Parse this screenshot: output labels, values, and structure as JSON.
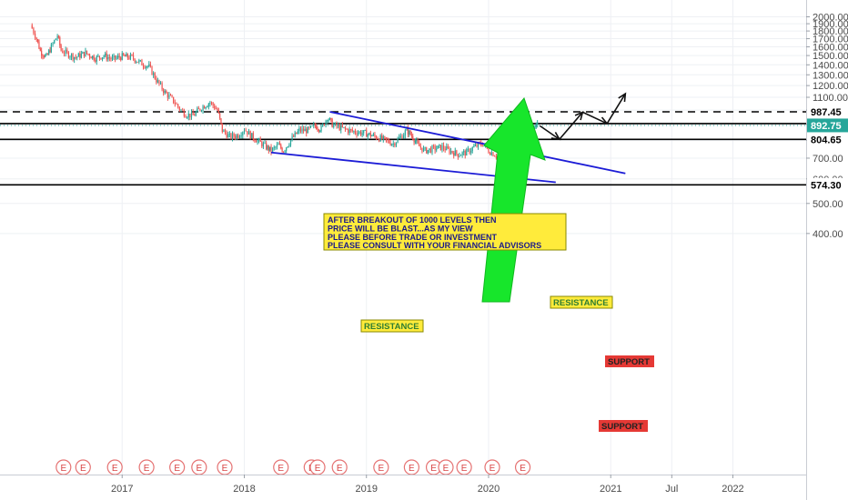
{
  "chart_data": {
    "type": "candlestick",
    "title": "",
    "xlabel": "",
    "ylabel": "",
    "ylim": [
      370,
      2090
    ],
    "yscale": "log",
    "x_ticks": [
      "2017",
      "2018",
      "2019",
      "2020",
      "2021",
      "Jul",
      "2022"
    ],
    "y_ticks": [
      2000,
      1900,
      1800,
      1700,
      1600,
      1500,
      1400,
      1300,
      1200,
      1100,
      1000,
      900,
      800,
      700,
      600,
      500,
      400
    ],
    "y_tick_labels": [
      "2000.00",
      "1900.00",
      "1800.00",
      "1700.00",
      "1600.00",
      "1500.00",
      "1400.00",
      "1300.00",
      "1200.00",
      "1100.00",
      "1000.00",
      "900.00",
      "800.00",
      "700.00",
      "600.00",
      "500.00",
      "400.00"
    ],
    "grid": true,
    "colors": {
      "up": "#26a69a",
      "down": "#ef5350",
      "trend": "#1c1cd6",
      "arrow": "#17e62b",
      "current": "#26a69a",
      "level": "#000000",
      "annotation_box": "#ffeb3b",
      "support_box": "#e53935"
    },
    "price_path": [
      [
        2016.25,
        1880
      ],
      [
        2016.3,
        1700
      ],
      [
        2016.33,
        1550
      ],
      [
        2016.38,
        1480
      ],
      [
        2016.42,
        1600
      ],
      [
        2016.47,
        1740
      ],
      [
        2016.5,
        1560
      ],
      [
        2016.55,
        1520
      ],
      [
        2016.62,
        1480
      ],
      [
        2016.7,
        1530
      ],
      [
        2016.78,
        1470
      ],
      [
        2016.85,
        1500
      ],
      [
        2016.92,
        1460
      ],
      [
        2017.0,
        1490
      ],
      [
        2017.08,
        1480
      ],
      [
        2017.15,
        1420
      ],
      [
        2017.22,
        1380
      ],
      [
        2017.28,
        1250
      ],
      [
        2017.35,
        1140
      ],
      [
        2017.42,
        1070
      ],
      [
        2017.47,
        1010
      ],
      [
        2017.52,
        970
      ],
      [
        2017.58,
        960
      ],
      [
        2017.65,
        1020
      ],
      [
        2017.72,
        1060
      ],
      [
        2017.78,
        1000
      ],
      [
        2017.82,
        860
      ],
      [
        2017.88,
        820
      ],
      [
        2017.95,
        830
      ],
      [
        2018.0,
        870
      ],
      [
        2018.05,
        830
      ],
      [
        2018.12,
        790
      ],
      [
        2018.18,
        760
      ],
      [
        2018.22,
        740
      ],
      [
        2018.28,
        770
      ],
      [
        2018.32,
        740
      ],
      [
        2018.38,
        800
      ],
      [
        2018.45,
        860
      ],
      [
        2018.52,
        860
      ],
      [
        2018.58,
        890
      ],
      [
        2018.63,
        870
      ],
      [
        2018.68,
        950
      ],
      [
        2018.72,
        900
      ],
      [
        2018.78,
        880
      ],
      [
        2018.85,
        860
      ],
      [
        2018.92,
        850
      ],
      [
        2019.0,
        840
      ],
      [
        2019.08,
        820
      ],
      [
        2019.15,
        800
      ],
      [
        2019.22,
        780
      ],
      [
        2019.28,
        820
      ],
      [
        2019.33,
        860
      ],
      [
        2019.38,
        820
      ],
      [
        2019.42,
        770
      ],
      [
        2019.48,
        740
      ],
      [
        2019.55,
        750
      ],
      [
        2019.62,
        760
      ],
      [
        2019.68,
        740
      ],
      [
        2019.75,
        720
      ],
      [
        2019.82,
        730
      ],
      [
        2019.88,
        760
      ],
      [
        2019.95,
        780
      ],
      [
        2020.0,
        740
      ],
      [
        2020.05,
        720
      ],
      [
        2020.1,
        690
      ],
      [
        2020.15,
        640
      ],
      [
        2020.18,
        580
      ],
      [
        2020.21,
        520
      ],
      [
        2020.23,
        530
      ],
      [
        2020.27,
        760
      ],
      [
        2020.32,
        830
      ],
      [
        2020.37,
        860
      ],
      [
        2020.4,
        892.75
      ]
    ],
    "series": [
      {
        "name": "",
        "type": "horizontal",
        "value": 987.45,
        "style": "dashed"
      },
      {
        "name": "",
        "type": "horizontal",
        "value": 905.0,
        "style": "solid"
      },
      {
        "name": "",
        "type": "horizontal",
        "value": 804.65,
        "style": "solid"
      },
      {
        "name": "",
        "type": "horizontal",
        "value": 574.3,
        "style": "solid"
      },
      {
        "name": "",
        "type": "trendline",
        "points": [
          [
            2018.7,
            987.45
          ],
          [
            2021.12,
            625
          ]
        ]
      },
      {
        "name": "",
        "type": "trendline",
        "points": [
          [
            2018.22,
            730
          ],
          [
            2020.55,
            585
          ]
        ]
      },
      {
        "name": "",
        "type": "projection",
        "points": [
          [
            2020.42,
            890
          ],
          [
            2020.58,
            805
          ],
          [
            2020.77,
            985
          ],
          [
            2020.97,
            905
          ],
          [
            2021.12,
            1130
          ]
        ]
      }
    ],
    "price_labels": [
      {
        "value": 987.45,
        "text": "987.45",
        "bg": "#ffffff",
        "color": "#000000"
      },
      {
        "value": 905.0,
        "text": "905.00",
        "bg": "#ffffff",
        "color": "#000000"
      },
      {
        "value": 892.75,
        "text": "892.75",
        "bg": "#26a69a",
        "color": "#ffffff"
      },
      {
        "value": 804.65,
        "text": "804.65",
        "bg": "#ffffff",
        "color": "#000000"
      },
      {
        "value": 574.3,
        "text": "574.30",
        "bg": "#ffffff",
        "color": "#000000"
      }
    ],
    "earnings_markers": [
      2016.52,
      2016.68,
      2016.94,
      2017.2,
      2017.45,
      2017.63,
      2017.84,
      2018.3,
      2018.55,
      2018.6,
      2018.78,
      2019.12,
      2019.37,
      2019.55,
      2019.65,
      2019.8,
      2020.03,
      2020.28
    ],
    "earnings_marker_label": "E",
    "annotations": {
      "note_lines": [
        "AFTER BREAKOUT OF 1000 LEVELS THEN",
        "PRICE WILL BE BLAST...AS MY VIEW",
        "PLEASE BEFORE TRADE OR INVESTMENT",
        "PLEASE CONSULT WITH YOUR FINANCIAL ADVISORS"
      ],
      "resistance_label": "RESISTANCE",
      "support_label": "SUPPORT"
    }
  }
}
